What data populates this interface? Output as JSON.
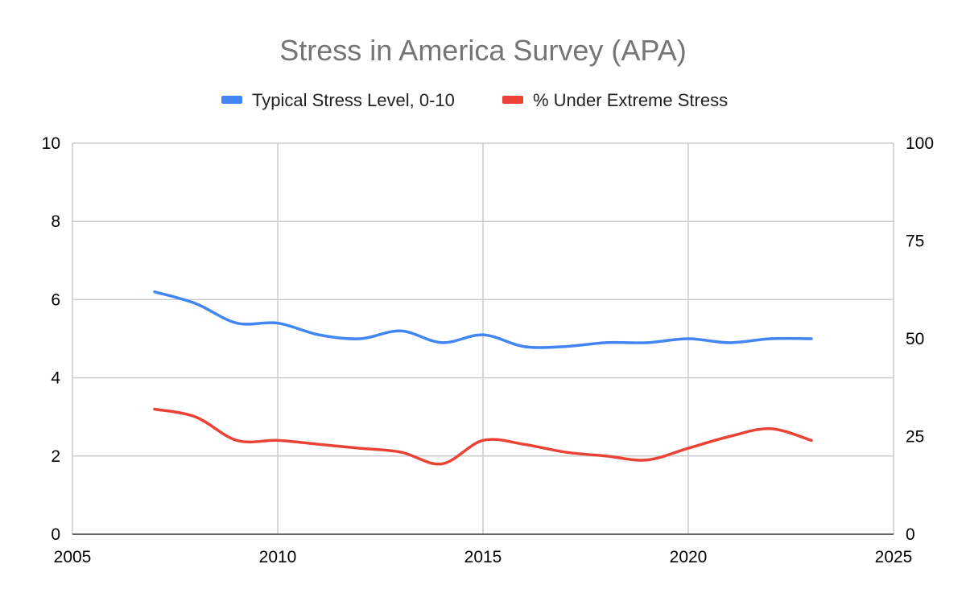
{
  "chart_data": {
    "type": "line",
    "title": "Stress in America Survey (APA)",
    "x": [
      2007,
      2008,
      2009,
      2010,
      2011,
      2012,
      2013,
      2014,
      2015,
      2016,
      2017,
      2018,
      2019,
      2020,
      2021,
      2022,
      2023
    ],
    "x_ticks": [
      "2005",
      "2010",
      "2015",
      "2020",
      "2025"
    ],
    "xlim": [
      2005,
      2025
    ],
    "y_left_ticks": [
      "0",
      "2",
      "4",
      "6",
      "8",
      "10"
    ],
    "ylim_left": [
      0,
      10
    ],
    "y_right_ticks": [
      "0",
      "25",
      "50",
      "75",
      "100"
    ],
    "ylim_right": [
      0,
      100
    ],
    "grid": true,
    "legend_position": "top",
    "series": [
      {
        "name": "Typical Stress Level, 0-10",
        "axis": "left",
        "color": "#4285F4",
        "values": [
          6.2,
          5.9,
          5.4,
          5.4,
          5.1,
          5.0,
          5.2,
          4.9,
          5.1,
          4.8,
          4.8,
          4.9,
          4.9,
          5.0,
          4.9,
          5.0,
          5.0
        ]
      },
      {
        "name": "% Under Extreme Stress",
        "axis": "right",
        "color": "#EA4335",
        "values": [
          32,
          30,
          24,
          24,
          23,
          22,
          21,
          18,
          24,
          23,
          21,
          20,
          19,
          22,
          25,
          27,
          24
        ]
      }
    ]
  }
}
